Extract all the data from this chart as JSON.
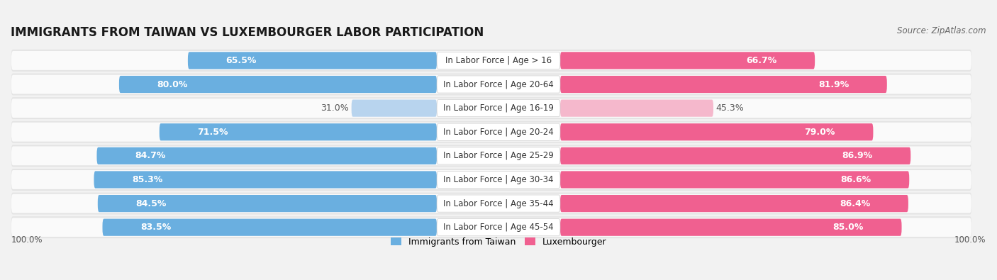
{
  "title": "IMMIGRANTS FROM TAIWAN VS LUXEMBOURGER LABOR PARTICIPATION",
  "source": "Source: ZipAtlas.com",
  "categories": [
    "In Labor Force | Age > 16",
    "In Labor Force | Age 20-64",
    "In Labor Force | Age 16-19",
    "In Labor Force | Age 20-24",
    "In Labor Force | Age 25-29",
    "In Labor Force | Age 30-34",
    "In Labor Force | Age 35-44",
    "In Labor Force | Age 45-54"
  ],
  "taiwan_values": [
    65.5,
    80.0,
    31.0,
    71.5,
    84.7,
    85.3,
    84.5,
    83.5
  ],
  "luxembourger_values": [
    66.7,
    81.9,
    45.3,
    79.0,
    86.9,
    86.6,
    86.4,
    85.0
  ],
  "taiwan_color": "#6aafe0",
  "taiwan_color_light": "#b8d4ee",
  "luxembourger_color": "#f06090",
  "luxembourger_color_light": "#f5b8cc",
  "background_color": "#f2f2f2",
  "row_bg_color": "#e4e4e4",
  "row_inner_color": "#fafafa",
  "max_value": 100.0,
  "title_fontsize": 12,
  "label_fontsize": 9,
  "category_fontsize": 8.5,
  "legend_fontsize": 9,
  "axis_label_fontsize": 8.5
}
